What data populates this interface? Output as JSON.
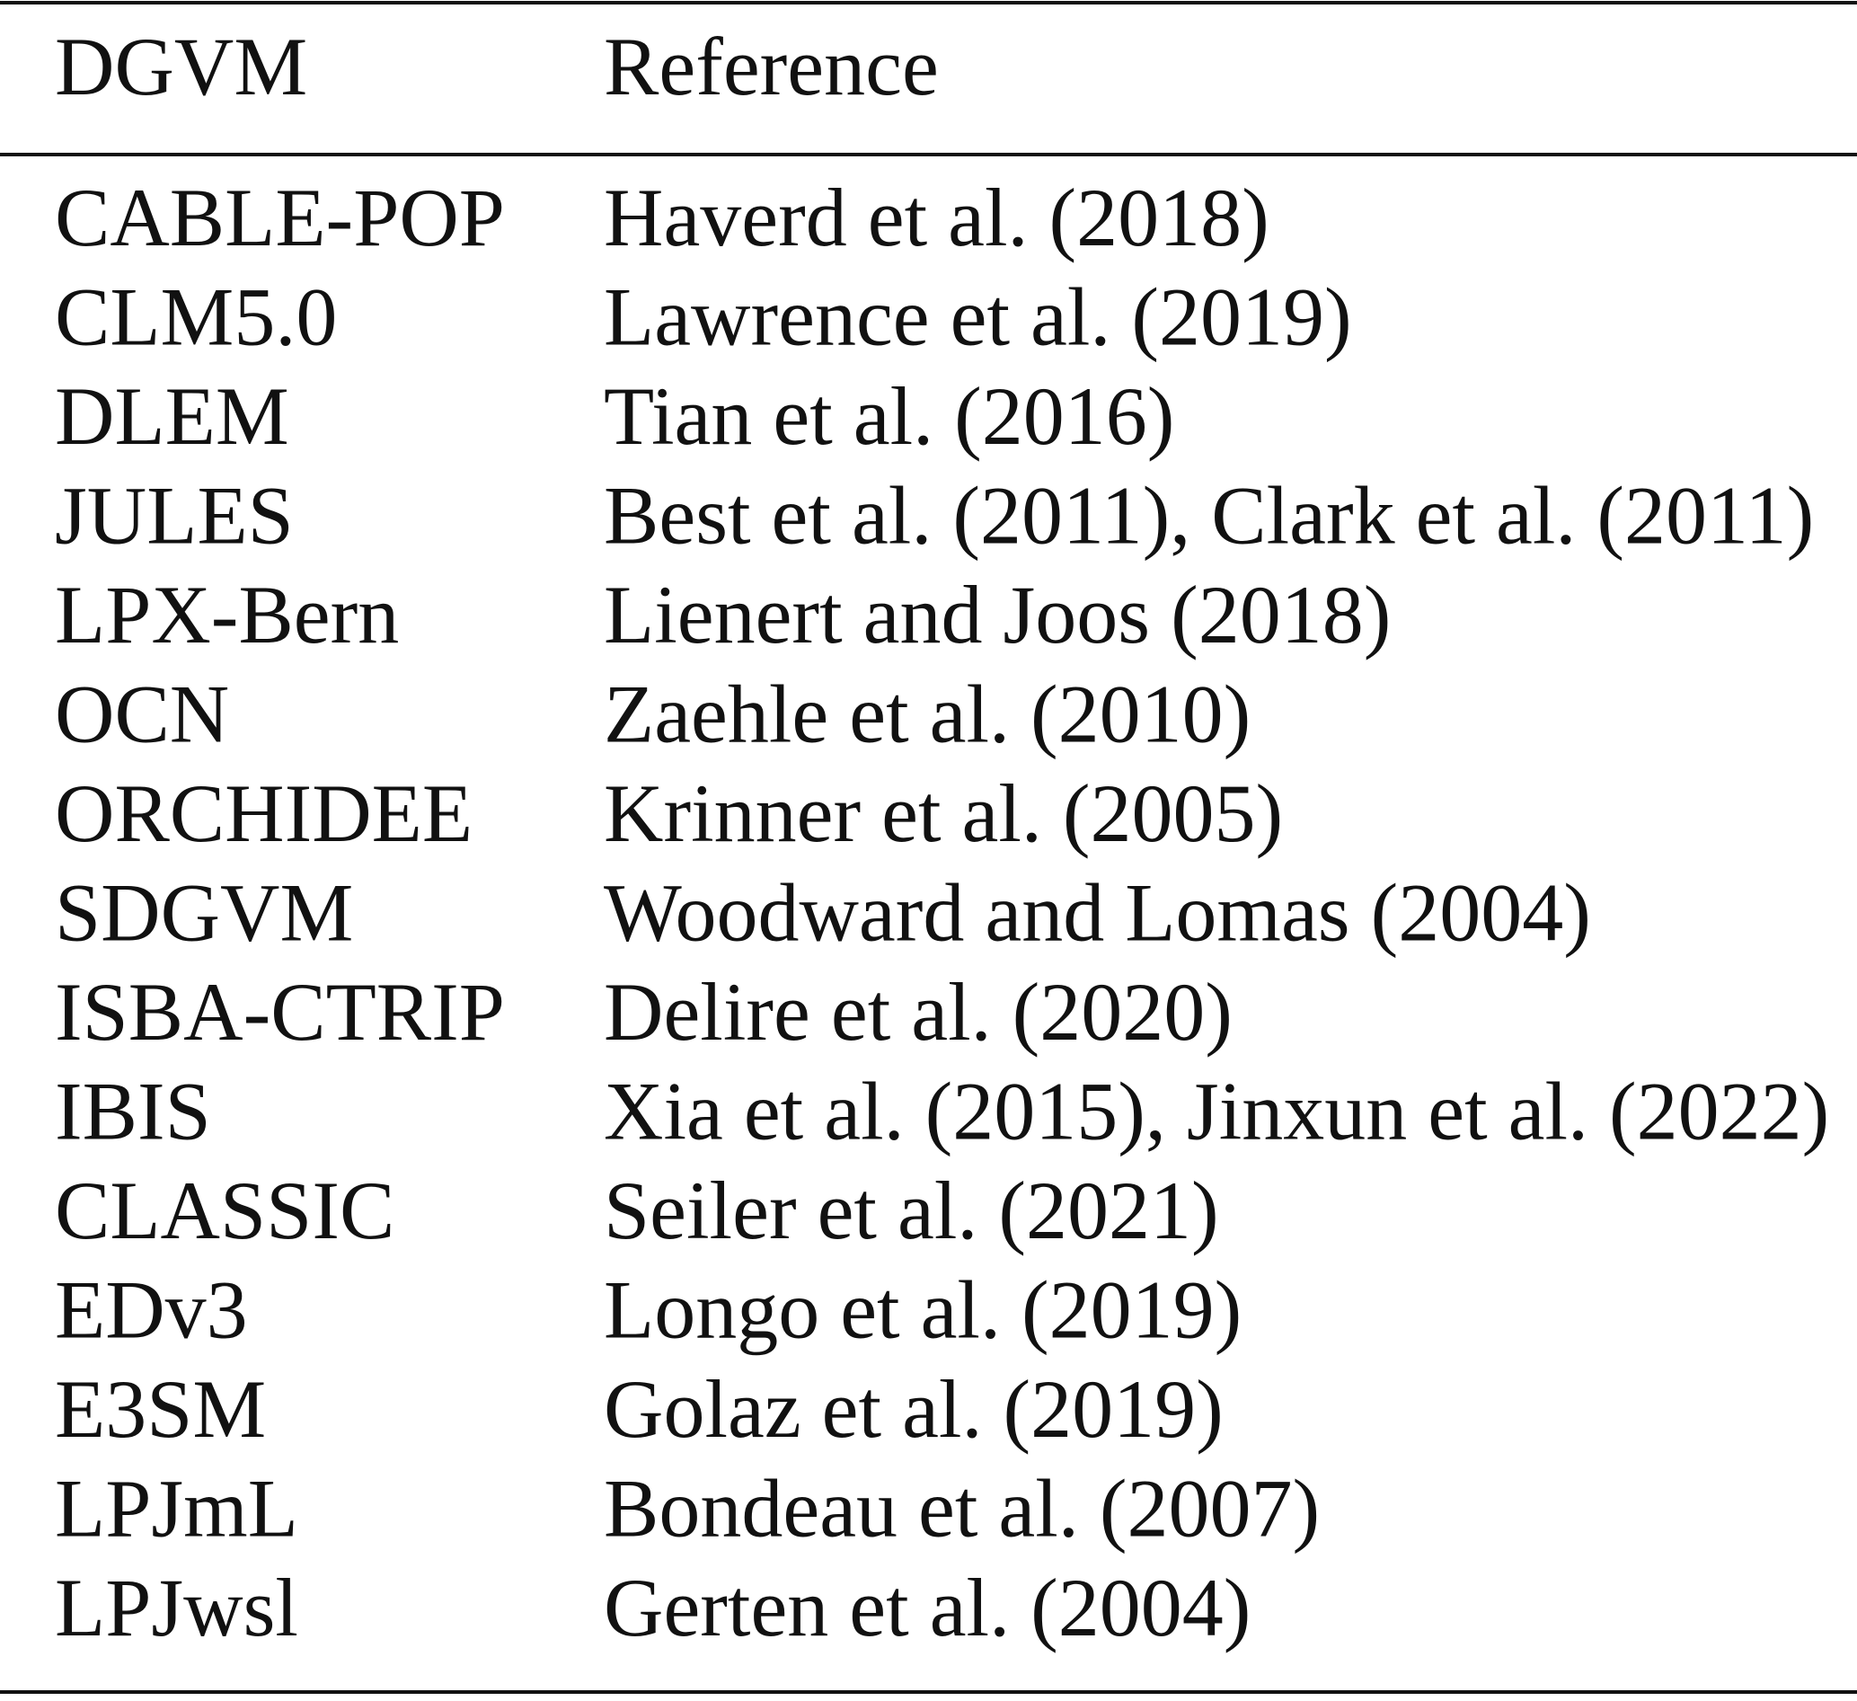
{
  "header": {
    "columns": [
      "DGVM",
      "Reference"
    ]
  },
  "table": {
    "rows": [
      [
        "CABLE-POP",
        "Haverd et al. (2018)"
      ],
      [
        "CLM5.0",
        "Lawrence et al. (2019)"
      ],
      [
        "DLEM",
        "Tian et al. (2016)"
      ],
      [
        "JULES",
        "Best et al. (2011), Clark et al. (2011)"
      ],
      [
        "LPX-Bern",
        "Lienert and Joos (2018)"
      ],
      [
        "OCN",
        "Zaehle et al. (2010)"
      ],
      [
        "ORCHIDEE",
        "Krinner et al. (2005)"
      ],
      [
        "SDGVM",
        "Woodward and Lomas (2004)"
      ],
      [
        "ISBA-CTRIP",
        "Delire et al. (2020)"
      ],
      [
        "IBIS",
        "Xia et al. (2015), Jinxun et al. (2022)"
      ],
      [
        "CLASSIC",
        "Seiler et al. (2021)"
      ],
      [
        "EDv3",
        "Longo et al. (2019)"
      ],
      [
        "E3SM",
        "Golaz et al. (2019)"
      ],
      [
        "LPJmL",
        "Bondeau et al. (2007)"
      ],
      [
        "LPJwsl",
        "Gerten et al. (2004)"
      ]
    ]
  }
}
